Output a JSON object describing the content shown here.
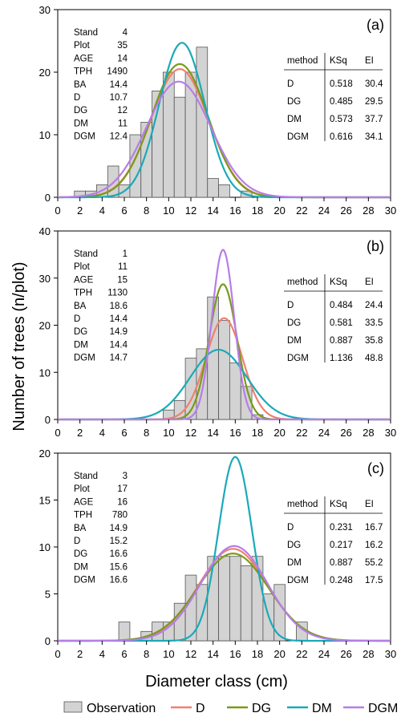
{
  "y_axis_label": "Number of trees (n/plot)",
  "x_axis_label": "Diameter class (cm)",
  "legend": [
    {
      "key": "observation",
      "label": "Observation",
      "kind": "box",
      "color": "#d3d3d3"
    },
    {
      "key": "D",
      "label": "D",
      "kind": "line",
      "color": "#f08070"
    },
    {
      "key": "DG",
      "label": "DG",
      "kind": "line",
      "color": "#7a9a1a"
    },
    {
      "key": "DM",
      "label": "DM",
      "kind": "line",
      "color": "#1aaab8"
    },
    {
      "key": "DGM",
      "label": "DGM",
      "kind": "line",
      "color": "#b77de8"
    }
  ],
  "chart_data": [
    {
      "type": "bar",
      "panel_label": "(a)",
      "xlim": [
        0,
        30
      ],
      "ylim": [
        0,
        30
      ],
      "xticks": [
        0,
        2,
        4,
        6,
        8,
        10,
        12,
        14,
        16,
        18,
        20,
        22,
        24,
        26,
        28,
        30
      ],
      "yticks": [
        0,
        10,
        20,
        30
      ],
      "bars": {
        "x": [
          2,
          3,
          4,
          5,
          6,
          7,
          8,
          9,
          10,
          11,
          12,
          13,
          14,
          15,
          16,
          17
        ],
        "values": [
          1,
          1,
          2,
          5,
          2,
          10,
          12,
          17,
          20,
          16,
          20,
          24,
          3,
          2,
          0,
          1
        ]
      },
      "stats": [
        {
          "label": "Stand",
          "value": "4"
        },
        {
          "label": "Plot",
          "value": "35"
        },
        {
          "label": "AGE",
          "value": "14"
        },
        {
          "label": "TPH",
          "value": "1490"
        },
        {
          "label": "BA",
          "value": "14.4"
        },
        {
          "label": "D",
          "value": "10.7"
        },
        {
          "label": "DG",
          "value": "12"
        },
        {
          "label": "DM",
          "value": "11"
        },
        {
          "label": "DGM",
          "value": "12.4"
        }
      ],
      "fit_table": {
        "headers": [
          "method",
          "KSq",
          "EI"
        ],
        "rows": [
          [
            "D",
            "0.518",
            "30.4"
          ],
          [
            "DG",
            "0.485",
            "29.5"
          ],
          [
            "DM",
            "0.573",
            "37.7"
          ],
          [
            "DGM",
            "0.616",
            "34.1"
          ]
        ]
      },
      "curves": [
        {
          "key": "D",
          "mean": 11.0,
          "sd": 2.6,
          "peak": 20.5
        },
        {
          "key": "DG",
          "mean": 11.0,
          "sd": 2.55,
          "peak": 21.3
        },
        {
          "key": "DM",
          "mean": 11.2,
          "sd": 2.05,
          "peak": 24.7
        },
        {
          "key": "DGM",
          "mean": 10.9,
          "sd": 2.9,
          "peak": 18.5
        }
      ]
    },
    {
      "type": "bar",
      "panel_label": "(b)",
      "xlim": [
        0,
        30
      ],
      "ylim": [
        0,
        40
      ],
      "xticks": [
        0,
        2,
        4,
        6,
        8,
        10,
        12,
        14,
        16,
        18,
        20,
        22,
        24,
        26,
        28,
        30
      ],
      "yticks": [
        0,
        10,
        20,
        30,
        40
      ],
      "bars": {
        "x": [
          10,
          11,
          12,
          13,
          14,
          15,
          16,
          17,
          18
        ],
        "values": [
          2,
          4,
          13,
          15,
          26,
          21,
          12,
          7,
          1
        ]
      },
      "stats": [
        {
          "label": "Stand",
          "value": "1"
        },
        {
          "label": "Plot",
          "value": "11"
        },
        {
          "label": "AGE",
          "value": "15"
        },
        {
          "label": "TPH",
          "value": "1130"
        },
        {
          "label": "BA",
          "value": "18.6"
        },
        {
          "label": "D",
          "value": "14.4"
        },
        {
          "label": "DG",
          "value": "14.9"
        },
        {
          "label": "DM",
          "value": "14.4"
        },
        {
          "label": "DGM",
          "value": "14.7"
        }
      ],
      "fit_table": {
        "headers": [
          "method",
          "KSq",
          "EI"
        ],
        "rows": [
          [
            "D",
            "0.484",
            "24.4"
          ],
          [
            "DG",
            "0.581",
            "33.5"
          ],
          [
            "DM",
            "0.887",
            "35.8"
          ],
          [
            "DGM",
            "1.136",
            "48.8"
          ]
        ]
      },
      "curves": [
        {
          "key": "D",
          "mean": 15.0,
          "sd": 1.65,
          "peak": 21.5
        },
        {
          "key": "DG",
          "mean": 14.9,
          "sd": 1.25,
          "peak": 28.7
        },
        {
          "key": "DM",
          "mean": 14.5,
          "sd": 2.55,
          "peak": 14.8
        },
        {
          "key": "DGM",
          "mean": 14.9,
          "sd": 1.0,
          "peak": 36.0
        }
      ]
    },
    {
      "type": "bar",
      "panel_label": "(c)",
      "xlim": [
        0,
        30
      ],
      "ylim": [
        0,
        20
      ],
      "xticks": [
        0,
        2,
        4,
        6,
        8,
        10,
        12,
        14,
        16,
        18,
        20,
        22,
        24,
        26,
        28,
        30
      ],
      "yticks": [
        0,
        5,
        10,
        15,
        20
      ],
      "bars": {
        "x": [
          6,
          7,
          8,
          9,
          10,
          11,
          12,
          13,
          14,
          15,
          16,
          17,
          18,
          19,
          20,
          21,
          22
        ],
        "values": [
          2,
          0,
          1,
          2,
          2,
          4,
          7,
          6,
          9,
          9,
          9,
          8,
          9,
          5,
          6,
          0,
          2
        ]
      },
      "stats": [
        {
          "label": "Stand",
          "value": "3"
        },
        {
          "label": "Plot",
          "value": "17"
        },
        {
          "label": "AGE",
          "value": "16"
        },
        {
          "label": "TPH",
          "value": "780"
        },
        {
          "label": "BA",
          "value": "14.9"
        },
        {
          "label": "D",
          "value": "15.2"
        },
        {
          "label": "DG",
          "value": "16.6"
        },
        {
          "label": "DM",
          "value": "15.6"
        },
        {
          "label": "DGM",
          "value": "16.6"
        }
      ],
      "fit_table": {
        "headers": [
          "method",
          "KSq",
          "EI"
        ],
        "rows": [
          [
            "D",
            "0.231",
            "16.7"
          ],
          [
            "DG",
            "0.217",
            "16.2"
          ],
          [
            "DM",
            "0.887",
            "55.2"
          ],
          [
            "DGM",
            "0.248",
            "17.5"
          ]
        ]
      },
      "curves": [
        {
          "key": "D",
          "mean": 15.8,
          "sd": 3.1,
          "peak": 9.8
        },
        {
          "key": "DG",
          "mean": 15.8,
          "sd": 3.2,
          "peak": 9.3
        },
        {
          "key": "DM",
          "mean": 16.0,
          "sd": 1.5,
          "peak": 19.6
        },
        {
          "key": "DGM",
          "mean": 15.9,
          "sd": 3.0,
          "peak": 10.1
        }
      ]
    }
  ]
}
